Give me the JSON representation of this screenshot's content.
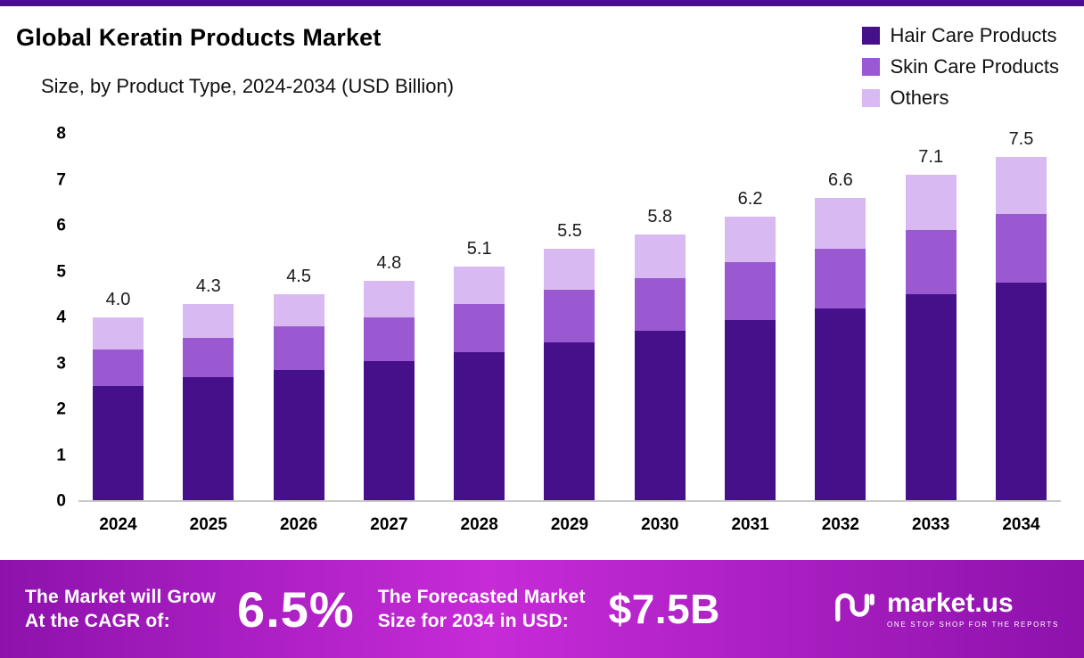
{
  "header": {
    "title": "Global Keratin Products Market",
    "subtitle": "Size, by Product Type, 2024-2034 (USD Billion)"
  },
  "legend": [
    {
      "label": "Hair Care Products",
      "color": "#45108a"
    },
    {
      "label": "Skin Care Products",
      "color": "#9a59d1"
    },
    {
      "label": "Others",
      "color": "#d9b9f1"
    }
  ],
  "chart_data": {
    "type": "bar",
    "stacked": true,
    "title": "Global Keratin Products Market Size, by Product Type, 2024-2034 (USD Billion)",
    "xlabel": "",
    "ylabel": "",
    "ylim": [
      0,
      8
    ],
    "yticks": [
      0,
      1,
      2,
      3,
      4,
      5,
      6,
      7,
      8
    ],
    "grid": false,
    "legend_position": "top-right",
    "categories": [
      "2024",
      "2025",
      "2026",
      "2027",
      "2028",
      "2029",
      "2030",
      "2031",
      "2032",
      "2033",
      "2034"
    ],
    "series": [
      {
        "name": "Hair Care Products",
        "color": "#45108a",
        "values": [
          2.5,
          2.7,
          2.85,
          3.05,
          3.25,
          3.45,
          3.7,
          3.95,
          4.2,
          4.5,
          4.75
        ]
      },
      {
        "name": "Skin Care Products",
        "color": "#9a59d1",
        "values": [
          0.8,
          0.85,
          0.95,
          0.95,
          1.05,
          1.15,
          1.15,
          1.25,
          1.3,
          1.4,
          1.5
        ]
      },
      {
        "name": "Others",
        "color": "#d9b9f1",
        "values": [
          0.7,
          0.75,
          0.7,
          0.8,
          0.8,
          0.9,
          0.95,
          1.0,
          1.1,
          1.2,
          1.25
        ]
      }
    ],
    "totals": [
      4.0,
      4.3,
      4.5,
      4.8,
      5.1,
      5.5,
      5.8,
      6.2,
      6.6,
      7.1,
      7.5
    ],
    "total_labels": [
      "4.0",
      "4.3",
      "4.5",
      "4.8",
      "5.1",
      "5.5",
      "5.8",
      "6.2",
      "6.6",
      "7.1",
      "7.5"
    ]
  },
  "footer": {
    "cagr": {
      "line1": "The Market will Grow",
      "line2": "At the CAGR of:",
      "value": "6.5%"
    },
    "forecast": {
      "line1": "The Forecasted Market",
      "line2": "Size for 2034 in USD:",
      "value": "$7.5B"
    },
    "brand": {
      "name": "market.us",
      "tagline": "ONE STOP SHOP FOR THE REPORTS"
    }
  },
  "colors": {
    "top_border": "#4a0e8f",
    "banner_gradient_start": "#8d12ac",
    "banner_gradient_mid": "#c62bd7",
    "baseline": "#c9c9c9"
  }
}
